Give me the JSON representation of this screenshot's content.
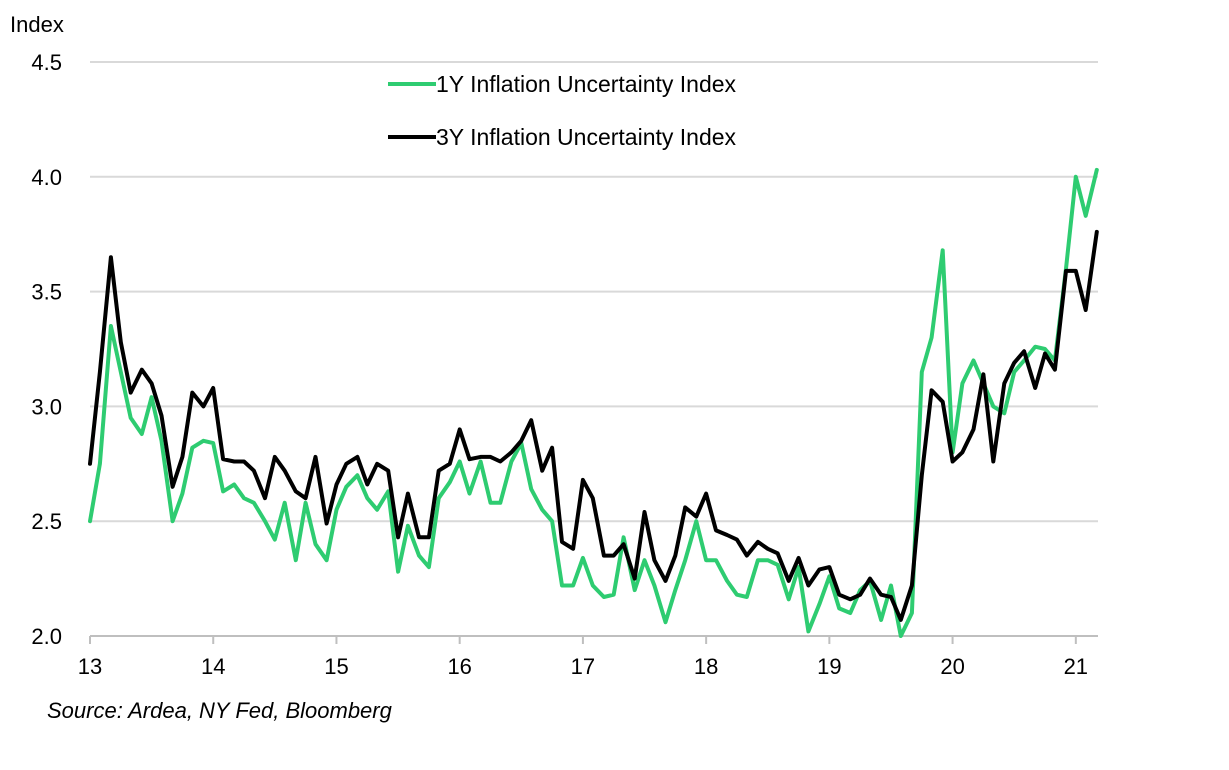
{
  "chart_data": {
    "type": "line",
    "ylabel": "Index",
    "ylim": [
      2.0,
      4.5
    ],
    "yticks": [
      "2.0",
      "2.5",
      "3.0",
      "3.5",
      "4.0",
      "4.5"
    ],
    "xlim": [
      13.0,
      21.18
    ],
    "xticks": [
      "13",
      "14",
      "15",
      "16",
      "17",
      "18",
      "19",
      "20",
      "21"
    ],
    "grid": "horizontal",
    "legend_position": "top-center",
    "source": "Source: Ardea, NY Fed, Bloomberg",
    "series": [
      {
        "name": "1Y Inflation Uncertainty Index",
        "color": "#2ecc71",
        "points": [
          [
            13.0,
            2.5
          ],
          [
            13.08,
            2.75
          ],
          [
            13.17,
            3.35
          ],
          [
            13.25,
            3.15
          ],
          [
            13.33,
            2.95
          ],
          [
            13.42,
            2.88
          ],
          [
            13.5,
            3.04
          ],
          [
            13.58,
            2.85
          ],
          [
            13.67,
            2.5
          ],
          [
            13.75,
            2.62
          ],
          [
            13.83,
            2.82
          ],
          [
            13.92,
            2.85
          ],
          [
            14.0,
            2.84
          ],
          [
            14.08,
            2.63
          ],
          [
            14.17,
            2.66
          ],
          [
            14.25,
            2.6
          ],
          [
            14.33,
            2.58
          ],
          [
            14.42,
            2.5
          ],
          [
            14.5,
            2.42
          ],
          [
            14.58,
            2.58
          ],
          [
            14.67,
            2.33
          ],
          [
            14.75,
            2.58
          ],
          [
            14.83,
            2.4
          ],
          [
            14.92,
            2.33
          ],
          [
            15.0,
            2.55
          ],
          [
            15.08,
            2.65
          ],
          [
            15.17,
            2.7
          ],
          [
            15.25,
            2.6
          ],
          [
            15.33,
            2.55
          ],
          [
            15.42,
            2.63
          ],
          [
            15.5,
            2.28
          ],
          [
            15.58,
            2.48
          ],
          [
            15.67,
            2.35
          ],
          [
            15.75,
            2.3
          ],
          [
            15.83,
            2.6
          ],
          [
            15.92,
            2.67
          ],
          [
            16.0,
            2.76
          ],
          [
            16.08,
            2.62
          ],
          [
            16.17,
            2.76
          ],
          [
            16.25,
            2.58
          ],
          [
            16.33,
            2.58
          ],
          [
            16.42,
            2.76
          ],
          [
            16.5,
            2.84
          ],
          [
            16.58,
            2.64
          ],
          [
            16.67,
            2.55
          ],
          [
            16.75,
            2.5
          ],
          [
            16.83,
            2.22
          ],
          [
            16.92,
            2.22
          ],
          [
            17.0,
            2.34
          ],
          [
            17.08,
            2.22
          ],
          [
            17.17,
            2.17
          ],
          [
            17.25,
            2.18
          ],
          [
            17.33,
            2.43
          ],
          [
            17.42,
            2.2
          ],
          [
            17.5,
            2.33
          ],
          [
            17.58,
            2.22
          ],
          [
            17.67,
            2.06
          ],
          [
            17.75,
            2.2
          ],
          [
            17.83,
            2.33
          ],
          [
            17.92,
            2.5
          ],
          [
            18.0,
            2.33
          ],
          [
            18.08,
            2.33
          ],
          [
            18.17,
            2.24
          ],
          [
            18.25,
            2.18
          ],
          [
            18.33,
            2.17
          ],
          [
            18.42,
            2.33
          ],
          [
            18.5,
            2.33
          ],
          [
            18.58,
            2.31
          ],
          [
            18.67,
            2.16
          ],
          [
            18.75,
            2.3
          ],
          [
            18.83,
            2.02
          ],
          [
            18.92,
            2.14
          ],
          [
            19.0,
            2.26
          ],
          [
            19.08,
            2.12
          ],
          [
            19.17,
            2.1
          ],
          [
            19.25,
            2.2
          ],
          [
            19.33,
            2.24
          ],
          [
            19.42,
            2.07
          ],
          [
            19.5,
            2.22
          ],
          [
            19.58,
            2.0
          ],
          [
            19.67,
            2.1
          ],
          [
            19.75,
            3.15
          ],
          [
            19.83,
            3.3
          ],
          [
            19.92,
            3.68
          ],
          [
            20.0,
            2.8
          ],
          [
            20.08,
            3.1
          ],
          [
            20.17,
            3.2
          ],
          [
            20.25,
            3.1
          ],
          [
            20.33,
            3.0
          ],
          [
            20.42,
            2.97
          ],
          [
            20.5,
            3.15
          ],
          [
            20.58,
            3.2
          ],
          [
            20.67,
            3.26
          ],
          [
            20.75,
            3.25
          ],
          [
            20.83,
            3.2
          ],
          [
            20.92,
            3.6
          ],
          [
            21.0,
            4.0
          ],
          [
            21.08,
            3.83
          ],
          [
            21.17,
            4.03
          ]
        ]
      },
      {
        "name": "3Y Inflation Uncertainty Index",
        "color": "#000000",
        "points": [
          [
            13.0,
            2.75
          ],
          [
            13.08,
            3.15
          ],
          [
            13.17,
            3.65
          ],
          [
            13.25,
            3.28
          ],
          [
            13.33,
            3.06
          ],
          [
            13.42,
            3.16
          ],
          [
            13.5,
            3.1
          ],
          [
            13.58,
            2.96
          ],
          [
            13.67,
            2.65
          ],
          [
            13.75,
            2.78
          ],
          [
            13.83,
            3.06
          ],
          [
            13.92,
            3.0
          ],
          [
            14.0,
            3.08
          ],
          [
            14.08,
            2.77
          ],
          [
            14.17,
            2.76
          ],
          [
            14.25,
            2.76
          ],
          [
            14.33,
            2.72
          ],
          [
            14.42,
            2.6
          ],
          [
            14.5,
            2.78
          ],
          [
            14.58,
            2.72
          ],
          [
            14.67,
            2.63
          ],
          [
            14.75,
            2.6
          ],
          [
            14.83,
            2.78
          ],
          [
            14.92,
            2.49
          ],
          [
            15.0,
            2.66
          ],
          [
            15.08,
            2.75
          ],
          [
            15.17,
            2.78
          ],
          [
            15.25,
            2.66
          ],
          [
            15.33,
            2.75
          ],
          [
            15.42,
            2.72
          ],
          [
            15.5,
            2.43
          ],
          [
            15.58,
            2.62
          ],
          [
            15.67,
            2.43
          ],
          [
            15.75,
            2.43
          ],
          [
            15.83,
            2.72
          ],
          [
            15.92,
            2.75
          ],
          [
            16.0,
            2.9
          ],
          [
            16.08,
            2.77
          ],
          [
            16.17,
            2.78
          ],
          [
            16.25,
            2.78
          ],
          [
            16.33,
            2.76
          ],
          [
            16.42,
            2.8
          ],
          [
            16.5,
            2.85
          ],
          [
            16.58,
            2.94
          ],
          [
            16.67,
            2.72
          ],
          [
            16.75,
            2.82
          ],
          [
            16.83,
            2.41
          ],
          [
            16.92,
            2.38
          ],
          [
            17.0,
            2.68
          ],
          [
            17.08,
            2.6
          ],
          [
            17.17,
            2.35
          ],
          [
            17.25,
            2.35
          ],
          [
            17.33,
            2.4
          ],
          [
            17.42,
            2.25
          ],
          [
            17.5,
            2.54
          ],
          [
            17.58,
            2.33
          ],
          [
            17.67,
            2.24
          ],
          [
            17.75,
            2.35
          ],
          [
            17.83,
            2.56
          ],
          [
            17.92,
            2.52
          ],
          [
            18.0,
            2.62
          ],
          [
            18.08,
            2.46
          ],
          [
            18.17,
            2.44
          ],
          [
            18.25,
            2.42
          ],
          [
            18.33,
            2.35
          ],
          [
            18.42,
            2.41
          ],
          [
            18.5,
            2.38
          ],
          [
            18.58,
            2.36
          ],
          [
            18.67,
            2.24
          ],
          [
            18.75,
            2.34
          ],
          [
            18.83,
            2.22
          ],
          [
            18.92,
            2.29
          ],
          [
            19.0,
            2.3
          ],
          [
            19.08,
            2.18
          ],
          [
            19.17,
            2.16
          ],
          [
            19.25,
            2.18
          ],
          [
            19.33,
            2.25
          ],
          [
            19.42,
            2.18
          ],
          [
            19.5,
            2.17
          ],
          [
            19.58,
            2.07
          ],
          [
            19.67,
            2.22
          ],
          [
            19.75,
            2.7
          ],
          [
            19.83,
            3.07
          ],
          [
            19.92,
            3.02
          ],
          [
            20.0,
            2.76
          ],
          [
            20.08,
            2.8
          ],
          [
            20.17,
            2.9
          ],
          [
            20.25,
            3.14
          ],
          [
            20.33,
            2.76
          ],
          [
            20.42,
            3.1
          ],
          [
            20.5,
            3.19
          ],
          [
            20.58,
            3.24
          ],
          [
            20.67,
            3.08
          ],
          [
            20.75,
            3.23
          ],
          [
            20.83,
            3.16
          ],
          [
            20.92,
            3.59
          ],
          [
            21.0,
            3.59
          ],
          [
            21.08,
            3.42
          ],
          [
            21.17,
            3.76
          ]
        ]
      }
    ]
  }
}
